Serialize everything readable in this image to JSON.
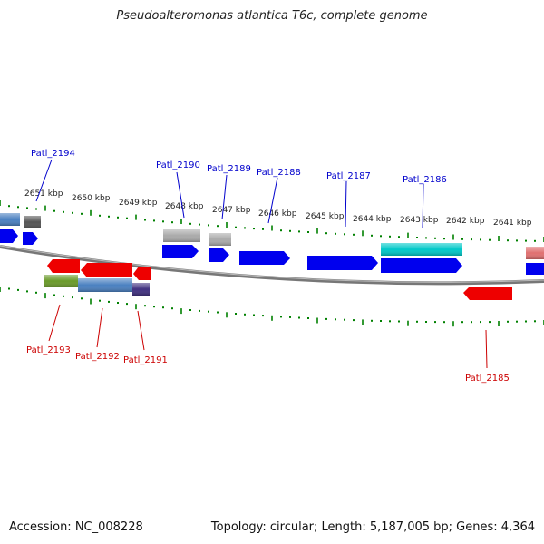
{
  "title": "Pseudoalteromonas atlantica T6c, complete genome",
  "footer": {
    "accession_label": "Accession: NC_008228",
    "summary": "Topology: circular; Length: 5,187,005 bp; Genes: 4,364"
  },
  "colors": {
    "upper_label": "#0000cc",
    "lower_label": "#cc0000",
    "tick": "#008000",
    "backbone": "#888888",
    "blue": "#0000ee",
    "red": "#ee0000",
    "gray": "#aaaaaa",
    "dark_gray": "#555555",
    "steel": "#4a80c0",
    "cyan": "#00c8c8",
    "olive": "#6a9a2a",
    "indigo": "#403080",
    "pink": "#e07070"
  },
  "scale_labels": [
    "2651 kbp",
    "2650 kbp",
    "2649 kbp",
    "2648 kbp",
    "2647 kbp",
    "2646 kbp",
    "2645 kbp",
    "2644 kbp",
    "2643 kbp",
    "2642 kbp",
    "2641 kbp"
  ],
  "upper_genes": [
    "Patl_2194",
    "Patl_2190",
    "Patl_2189",
    "Patl_2188",
    "Patl_2187",
    "Patl_2186"
  ],
  "lower_genes": [
    "Patl_2193",
    "Patl_2192",
    "Patl_2191",
    "Patl_2185"
  ]
}
